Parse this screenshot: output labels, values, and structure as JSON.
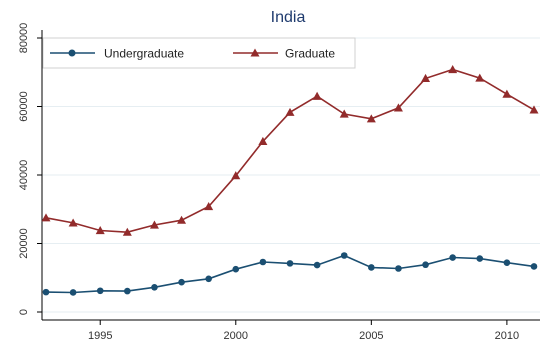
{
  "colors": {
    "undergraduate": "#1b4f72",
    "graduate": "#922b2b",
    "title": "#1f3b6e",
    "grid": "#e6eef2"
  },
  "chart_data": {
    "type": "line",
    "title": "India",
    "xlabel": "",
    "ylabel": "",
    "xlim": [
      1993,
      2011
    ],
    "ylim": [
      0,
      80000
    ],
    "x_ticks": [
      1995,
      2000,
      2005,
      2010
    ],
    "y_ticks": [
      0,
      20000,
      40000,
      60000,
      80000
    ],
    "grid": true,
    "legend_position": "top-left",
    "x": [
      1993,
      1994,
      1995,
      1996,
      1997,
      1998,
      1999,
      2000,
      2001,
      2002,
      2003,
      2004,
      2005,
      2006,
      2007,
      2008,
      2009,
      2010,
      2011
    ],
    "series": [
      {
        "name": "Undergraduate",
        "marker": "circle",
        "color": "#1b4f72",
        "values": [
          5800,
          5700,
          6200,
          6100,
          7200,
          8700,
          9700,
          12500,
          14600,
          14200,
          13700,
          16500,
          13000,
          12700,
          13800,
          15900,
          15600,
          14400,
          13300
        ]
      },
      {
        "name": "Graduate",
        "marker": "triangle",
        "color": "#922b2b",
        "values": [
          27500,
          26000,
          23800,
          23300,
          25400,
          26800,
          30800,
          39800,
          49800,
          58300,
          63000,
          57800,
          56400,
          59600,
          68200,
          70800,
          68300,
          63600,
          59000
        ]
      }
    ]
  }
}
